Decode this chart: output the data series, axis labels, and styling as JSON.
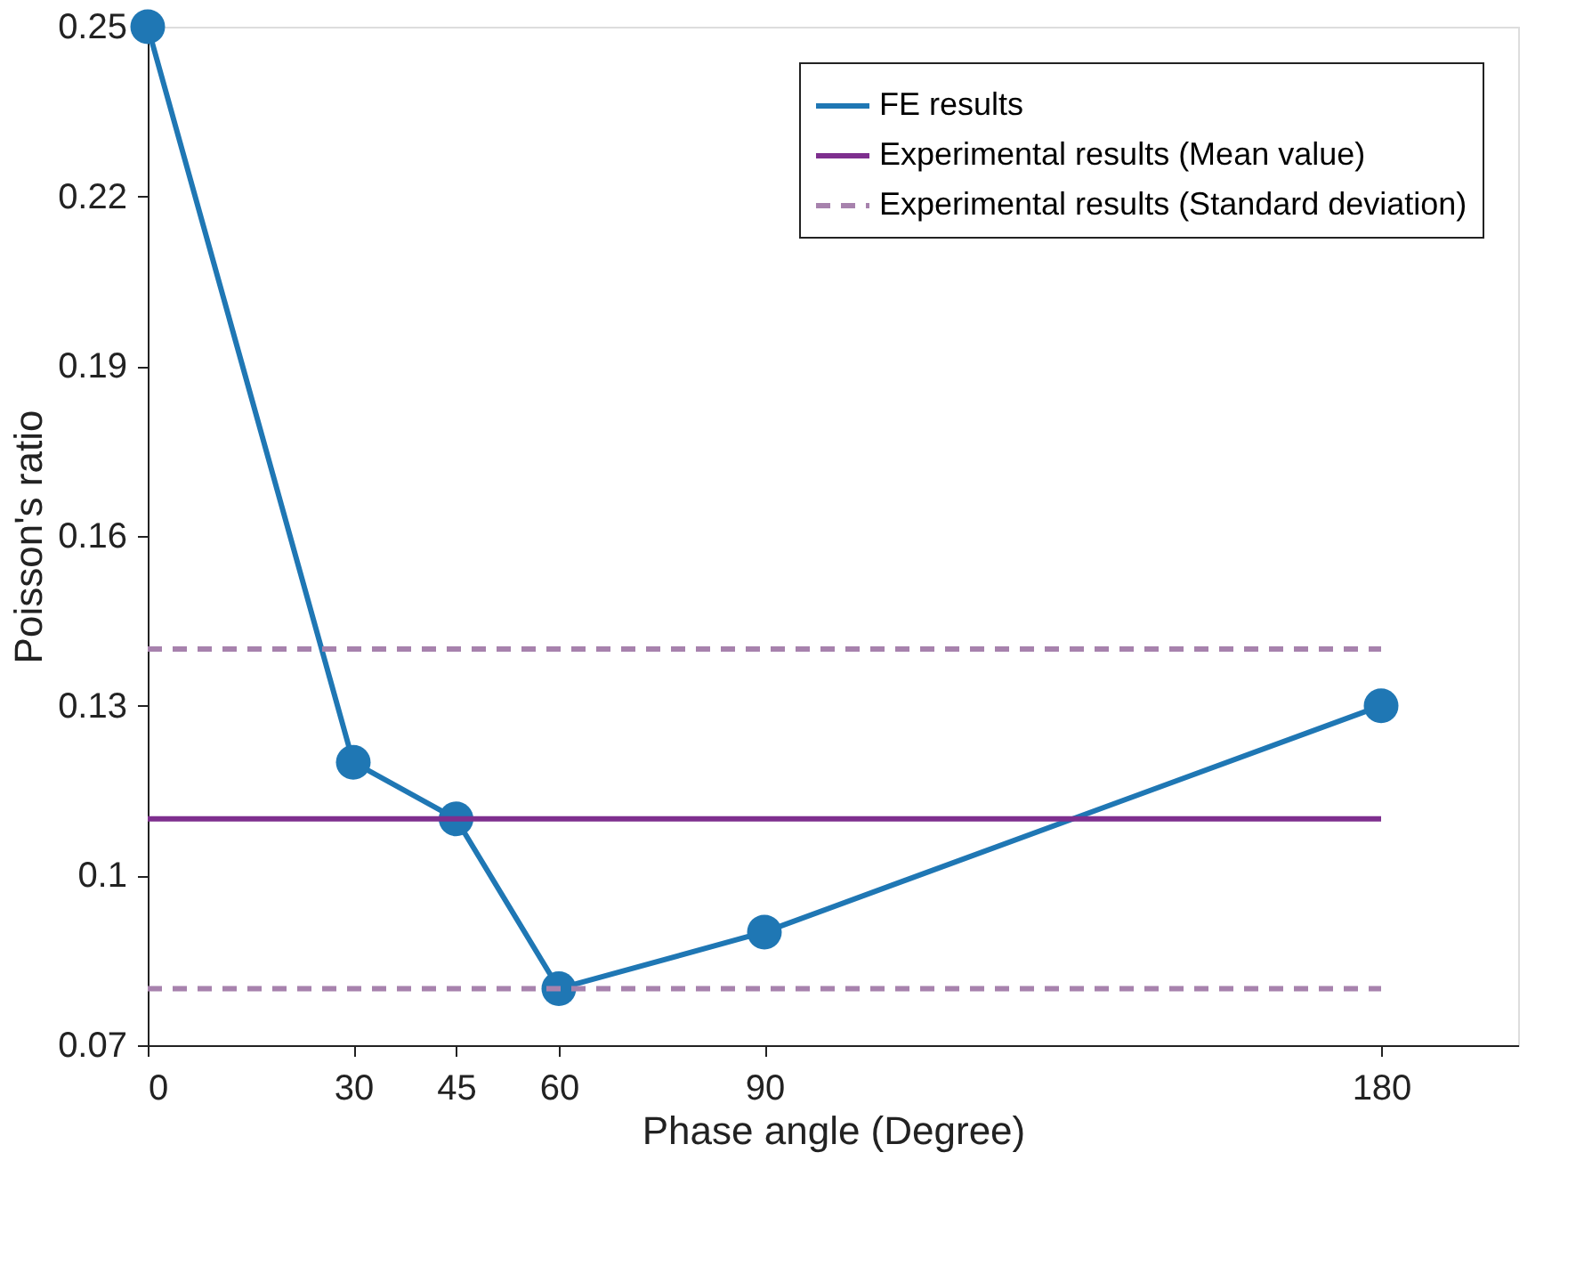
{
  "chart_data": {
    "type": "line",
    "xlabel": "Phase angle (Degree)",
    "ylabel": "Poisson's ratio",
    "xlim": [
      0,
      200
    ],
    "xticks": [
      0,
      30,
      45,
      60,
      90,
      180
    ],
    "ylim": [
      0.07,
      0.25
    ],
    "yticks": [
      0.07,
      {
        "value": 0.1,
        "label": "0.1"
      },
      0.13,
      0.16,
      0.19,
      0.22,
      0.25
    ],
    "grid": false,
    "legend": "top right",
    "series": [
      {
        "name": "FE results",
        "color": "#1f77b4",
        "x": [
          0,
          30,
          45,
          60,
          90,
          180
        ],
        "values": [
          0.25,
          0.12,
          0.11,
          0.08,
          0.09,
          0.13
        ],
        "marker": "circle",
        "line_style": "solid"
      },
      {
        "name": "Experimental results (Mean value)",
        "color": "#7e2f8e",
        "x": [
          0,
          180
        ],
        "values": [
          0.11,
          0.11
        ],
        "marker": "none",
        "line_style": "solid"
      },
      {
        "name": "Experimental results (Standard deviation)",
        "color": "#a782ad",
        "x": [
          0,
          180
        ],
        "values": [
          0.14,
          0.14
        ],
        "marker": "none",
        "line_style": "dashed"
      },
      {
        "color": "#a782ad",
        "x": [
          0,
          180
        ],
        "values": [
          0.08,
          0.08
        ],
        "marker": "none",
        "line_style": "dashed"
      }
    ]
  }
}
